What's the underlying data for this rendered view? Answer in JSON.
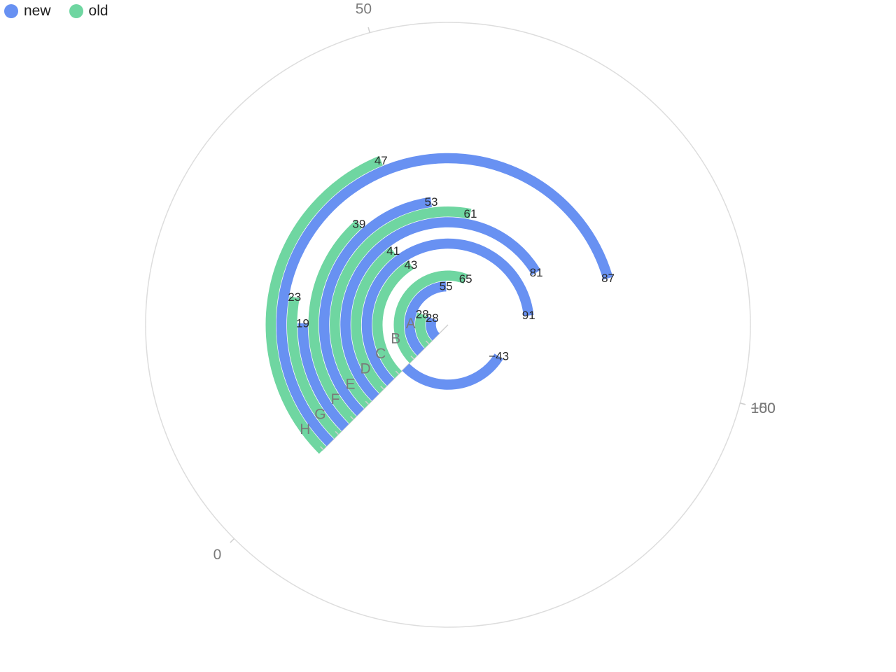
{
  "legend": [
    {
      "name": "new",
      "color": "#6891f2"
    },
    {
      "name": "old",
      "color": "#6fd6a1"
    }
  ],
  "chart_data": {
    "type": "polar-bar",
    "categories": [
      "A",
      "B",
      "C",
      "D",
      "E",
      "F",
      "G",
      "H"
    ],
    "series": [
      {
        "name": "new",
        "color": "#6891f2",
        "values": [
          28,
          55,
          -43,
          91,
          81,
          53,
          19,
          87
        ]
      },
      {
        "name": "old",
        "color": "#6fd6a1",
        "values": [
          28,
          65,
          43,
          41,
          61,
          39,
          23,
          47
        ]
      }
    ],
    "angle_axis": {
      "ticks": [
        "0",
        "50",
        "100",
        "−50"
      ],
      "range": [
        -75,
        125
      ]
    },
    "grid_color": "#dddddd",
    "axis_label_color": "#7a7a7a"
  }
}
